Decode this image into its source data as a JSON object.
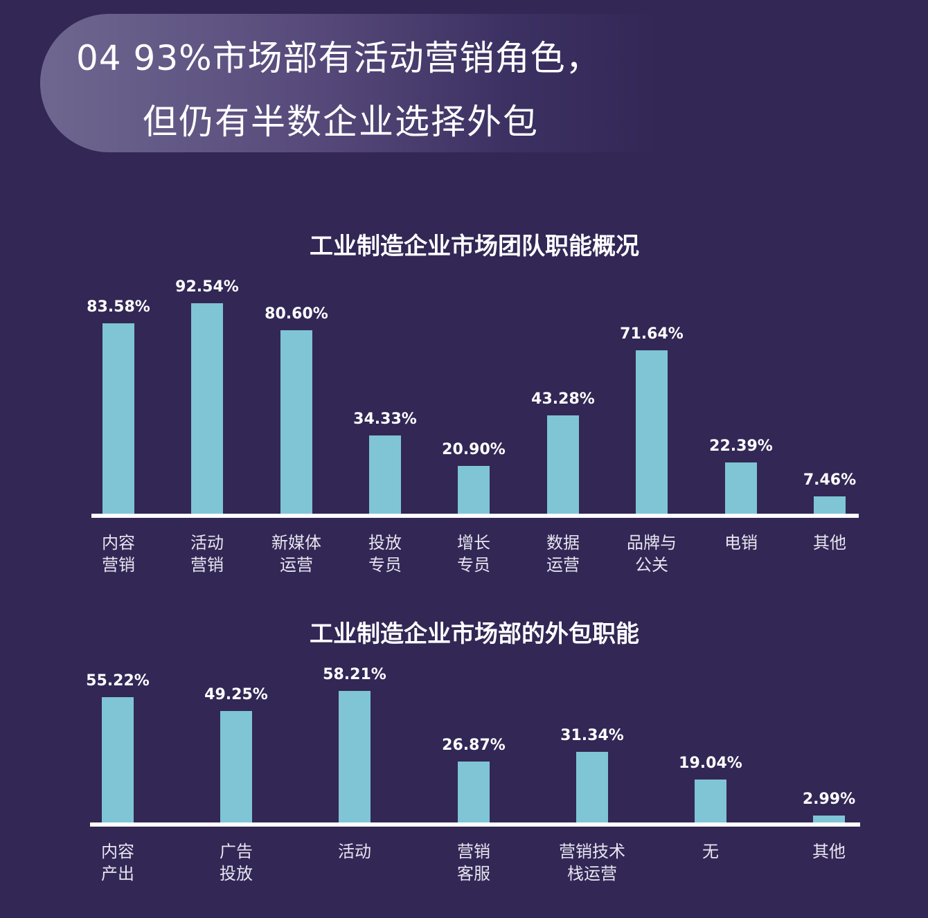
{
  "header": {
    "line1": "04 93%市场部有活动营销角色，",
    "line2": "但仍有半数企业选择外包"
  },
  "colors": {
    "background": "#322755",
    "bar": "#7fc5d5",
    "baseline": "#ffffff",
    "text": "#ffffff"
  },
  "chart_data": [
    {
      "type": "bar",
      "title": "工业制造企业市场团队职能概况",
      "categories": [
        "内容\n营销",
        "活动\n营销",
        "新媒体\n运营",
        "投放\n专员",
        "增长\n专员",
        "数据\n运营",
        "品牌与\n公关",
        "电销",
        "其他"
      ],
      "values": [
        83.58,
        92.54,
        80.6,
        34.33,
        20.9,
        43.28,
        71.64,
        22.39,
        7.46
      ],
      "labels": [
        "83.58%",
        "92.54%",
        "80.60%",
        "34.33%",
        "20.90%",
        "43.28%",
        "71.64%",
        "22.39%",
        "7.46%"
      ],
      "xlabel": "",
      "ylabel": "",
      "ylim": [
        0,
        100
      ],
      "grid": false,
      "legend": "none"
    },
    {
      "type": "bar",
      "title": "工业制造企业市场部的外包职能",
      "categories": [
        "内容\n产出",
        "广告\n投放",
        "活动",
        "营销\n客服",
        "营销技术\n栈运营",
        "无",
        "其他"
      ],
      "values": [
        55.22,
        49.25,
        58.21,
        26.87,
        31.34,
        19.04,
        2.99
      ],
      "labels": [
        "55.22%",
        "49.25%",
        "58.21%",
        "26.87%",
        "31.34%",
        "19.04%",
        "2.99%"
      ],
      "xlabel": "",
      "ylabel": "",
      "ylim": [
        0,
        100
      ],
      "grid": false,
      "legend": "none"
    }
  ]
}
